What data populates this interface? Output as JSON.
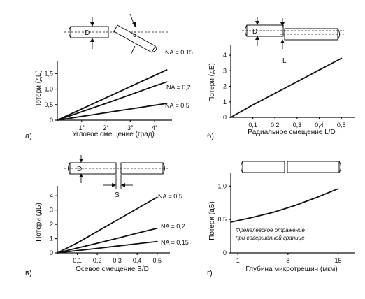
{
  "chart_data": [
    {
      "type": "line",
      "panel": "а)",
      "xlabel": "Угловое смещение (град)",
      "ylabel": "Потери (дБ)",
      "xlim": [
        0,
        4.6
      ],
      "ylim": [
        0,
        1.8
      ],
      "xticks": [
        1,
        2,
        3,
        4
      ],
      "xtick_labels": [
        "1°",
        "2°",
        "3°",
        "4°"
      ],
      "yticks": [
        0,
        0.5,
        1.0,
        1.5
      ],
      "ytick_labels": [
        "0",
        "0,5",
        "1,0",
        "1,5"
      ],
      "diagram_labels": [
        "D",
        "θ"
      ],
      "series": [
        {
          "name": "NA = 0,15",
          "x": [
            0,
            1,
            2,
            3,
            4,
            4.5
          ],
          "y": [
            0,
            0.36,
            0.72,
            1.08,
            1.44,
            1.62
          ]
        },
        {
          "name": "NA = 0,2",
          "x": [
            0,
            1,
            2,
            3,
            4,
            4.5
          ],
          "y": [
            0,
            0.27,
            0.54,
            0.82,
            1.1,
            1.23
          ]
        },
        {
          "name": "NA = 0,5",
          "x": [
            0,
            1,
            2,
            3,
            4,
            4.5
          ],
          "y": [
            0,
            0.12,
            0.24,
            0.36,
            0.48,
            0.54
          ]
        }
      ]
    },
    {
      "type": "line",
      "panel": "б)",
      "xlabel": "Радиальное смещение L/D",
      "ylabel": "Потери (дБ)",
      "xlim": [
        0,
        0.55
      ],
      "ylim": [
        0,
        4.5
      ],
      "xticks": [
        0.1,
        0.2,
        0.3,
        0.4,
        0.5
      ],
      "xtick_labels": [
        "0,1",
        "0,2",
        "0,3",
        "0,4",
        "0,5"
      ],
      "yticks": [
        0,
        1,
        2,
        3,
        4
      ],
      "ytick_labels": [
        "0",
        "1",
        "2",
        "3",
        "4"
      ],
      "diagram_labels": [
        "D",
        "L"
      ],
      "series": [
        {
          "name": "",
          "x": [
            0,
            0.1,
            0.2,
            0.3,
            0.4,
            0.5
          ],
          "y": [
            0,
            0.8,
            1.55,
            2.3,
            3.05,
            3.8
          ]
        }
      ]
    },
    {
      "type": "line",
      "panel": "в)",
      "xlabel": "Осевое смещение S/D",
      "ylabel": "Потери (дБ)",
      "xlim": [
        0,
        0.55
      ],
      "ylim": [
        0,
        4.5
      ],
      "xticks": [
        0.1,
        0.2,
        0.3,
        0.4,
        0.5
      ],
      "xtick_labels": [
        "0,1",
        "0,2",
        "0,3",
        "0,4",
        "0,5"
      ],
      "yticks": [
        0,
        1,
        2,
        3,
        4
      ],
      "ytick_labels": [
        "0",
        "1",
        "2",
        "3",
        "4"
      ],
      "diagram_labels": [
        "D",
        "S"
      ],
      "series": [
        {
          "name": "NA = 0,5",
          "x": [
            0,
            0.1,
            0.2,
            0.3,
            0.4,
            0.5
          ],
          "y": [
            0,
            0.7,
            1.5,
            2.3,
            3.1,
            3.9
          ]
        },
        {
          "name": "NA = 0,2",
          "x": [
            0,
            0.1,
            0.2,
            0.3,
            0.4,
            0.5
          ],
          "y": [
            0,
            0.34,
            0.68,
            1.02,
            1.38,
            1.72
          ]
        },
        {
          "name": "NA = 0,15",
          "x": [
            0,
            0.1,
            0.2,
            0.3,
            0.4,
            0.5
          ],
          "y": [
            0,
            0.16,
            0.32,
            0.48,
            0.64,
            0.8
          ]
        }
      ]
    },
    {
      "type": "line",
      "panel": "г)",
      "xlabel": "Глубина микротрещин (мкм)",
      "ylabel": "Потери (дБ)",
      "xlim": [
        0,
        17
      ],
      "ylim": [
        0,
        1.15
      ],
      "xticks": [
        1,
        8,
        15
      ],
      "xtick_labels": [
        "1",
        "8",
        "15"
      ],
      "yticks": [
        0,
        0.5,
        1.0
      ],
      "ytick_labels": [
        "0",
        "0,5",
        "1,0"
      ],
      "annotation": [
        "Френелевское отражение",
        "при совершенной границе"
      ],
      "series": [
        {
          "name": "",
          "x": [
            0,
            3,
            6,
            9,
            12,
            15
          ],
          "y": [
            0.46,
            0.53,
            0.61,
            0.71,
            0.83,
            0.96
          ]
        }
      ]
    }
  ]
}
